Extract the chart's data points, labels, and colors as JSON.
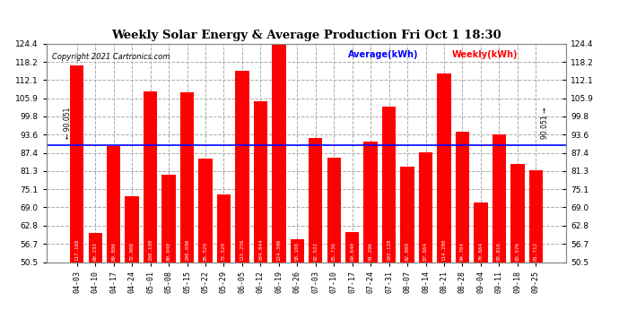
{
  "title": "Weekly Solar Energy & Average Production Fri Oct 1 18:30",
  "copyright": "Copyright 2021 Cartronics.com",
  "average_label": "Average(kWh)",
  "weekly_label": "Weekly(kWh)",
  "average_value": 90.051,
  "categories": [
    "04-03",
    "04-10",
    "04-17",
    "04-24",
    "05-01",
    "05-08",
    "05-15",
    "05-22",
    "05-29",
    "06-05",
    "06-12",
    "06-19",
    "06-26",
    "07-03",
    "07-10",
    "07-17",
    "07-24",
    "07-31",
    "08-07",
    "08-14",
    "08-21",
    "08-28",
    "09-04",
    "09-11",
    "09-18",
    "09-25"
  ],
  "values": [
    117.168,
    60.232,
    89.896,
    72.908,
    108.108,
    80.04,
    108.096,
    85.52,
    73.52,
    115.256,
    104.844,
    124.396,
    58.108,
    92.532,
    85.736,
    60.64,
    91.296,
    103.128,
    82.88,
    87.664,
    114.28,
    94.704,
    70.664,
    93.816,
    83.576,
    81.712
  ],
  "bar_color": "#ff0000",
  "avg_line_color": "#0000ff",
  "background_color": "#ffffff",
  "grid_color": "#aaaaaa",
  "title_color": "#000000",
  "ylim_min": 50.5,
  "ylim_max": 124.4,
  "yticks": [
    50.5,
    56.7,
    62.8,
    69.0,
    75.1,
    81.3,
    87.4,
    93.6,
    99.8,
    105.9,
    112.1,
    118.2,
    124.4
  ]
}
